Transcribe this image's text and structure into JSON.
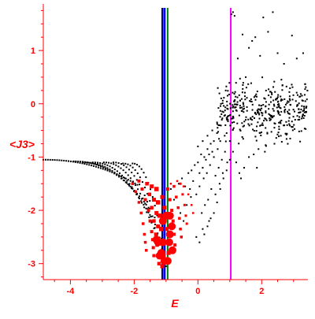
{
  "chart_data": {
    "type": "scatter",
    "title": "",
    "xlabel": "E",
    "ylabel": "<J3>",
    "xlim": [
      -4.85,
      3.45
    ],
    "ylim": [
      -3.3,
      1.8
    ],
    "grid": false,
    "legend": "none",
    "x_ticks": [
      -4,
      -2,
      0,
      2
    ],
    "y_ticks": [
      1,
      0,
      -1,
      -2,
      -3
    ],
    "x_tick_labels": [
      "-4",
      "-2",
      "0",
      "2"
    ],
    "y_tick_labels": [
      "1",
      "0",
      "-1",
      "-2",
      "-3"
    ],
    "colors": {
      "axis": "#ff0000",
      "small_points": "#000000",
      "large_points": "#ff0000",
      "line_blue": "#0000ff",
      "line_darkblue": "#000080",
      "line_green": "#008000",
      "line_magenta": "#ff00ff"
    },
    "vertical_lines": [
      {
        "x": -1.12,
        "color": "#000080"
      },
      {
        "x": -1.05,
        "color": "#0000ff"
      },
      {
        "x": -0.95,
        "color": "#008000"
      },
      {
        "x": 1.03,
        "color": "#ff00ff"
      }
    ],
    "black_branches": [
      {
        "x0": -4.85,
        "y0": -1.05,
        "x1": -1.9,
        "y1": -1.52,
        "n": 42
      },
      {
        "x0": -3.9,
        "y0": -1.08,
        "x1": -1.55,
        "y1": -1.95,
        "n": 34
      },
      {
        "x0": -3.6,
        "y0": -1.1,
        "x1": -1.4,
        "y1": -2.2,
        "n": 30
      },
      {
        "x0": -3.3,
        "y0": -1.1,
        "x1": -1.3,
        "y1": -2.45,
        "n": 27
      },
      {
        "x0": -2.95,
        "y0": -1.1,
        "x1": -1.2,
        "y1": -2.6,
        "n": 24
      },
      {
        "x0": -2.65,
        "y0": -1.1,
        "x1": -1.1,
        "y1": -2.8,
        "n": 20
      },
      {
        "x0": -2.35,
        "y0": -1.12,
        "x1": -1.05,
        "y1": -2.95,
        "n": 18
      },
      {
        "x0": -2.05,
        "y0": -1.12,
        "x1": -1.0,
        "y1": -3.05,
        "n": 16
      }
    ],
    "black_ascent": [
      [
        -0.85,
        -1.6
      ],
      [
        -0.75,
        -1.8
      ],
      [
        -0.6,
        -1.5
      ],
      [
        -0.5,
        -1.4
      ],
      [
        -0.4,
        -1.55
      ],
      [
        -0.3,
        -1.3
      ],
      [
        -0.2,
        -1.25
      ],
      [
        -0.1,
        -1.15
      ],
      [
        0.0,
        -1.1
      ],
      [
        0.1,
        -0.95
      ],
      [
        0.2,
        -1.0
      ],
      [
        0.3,
        -0.85
      ],
      [
        0.4,
        -0.75
      ],
      [
        0.5,
        -0.7
      ],
      [
        0.6,
        -0.55
      ],
      [
        -0.25,
        -1.6
      ],
      [
        -0.15,
        -1.45
      ],
      [
        0.05,
        -1.3
      ],
      [
        0.15,
        -1.2
      ],
      [
        0.25,
        -1.05
      ],
      [
        0.35,
        -0.95
      ],
      [
        0.45,
        -0.9
      ],
      [
        -0.05,
        -1.7
      ],
      [
        0.05,
        -1.55
      ],
      [
        0.18,
        -1.4
      ],
      [
        0.28,
        -1.3
      ],
      [
        0.38,
        -1.15
      ],
      [
        0.5,
        -1.0
      ],
      [
        0.62,
        -0.85
      ],
      [
        0.7,
        -0.7
      ],
      [
        -0.35,
        -1.9
      ],
      [
        -0.22,
        -1.75
      ],
      [
        0.12,
        -2.05
      ],
      [
        0.22,
        -1.9
      ],
      [
        0.32,
        -1.8
      ],
      [
        0.42,
        -1.6
      ],
      [
        0.55,
        -1.35
      ],
      [
        0.65,
        -1.2
      ],
      [
        0.75,
        -1.05
      ],
      [
        0.85,
        -0.9
      ],
      [
        0.3,
        -2.3
      ],
      [
        0.4,
        -2.15
      ],
      [
        0.5,
        -2.05
      ],
      [
        0.6,
        -1.85
      ],
      [
        0.7,
        -1.6
      ],
      [
        0.8,
        -1.4
      ],
      [
        0.9,
        -1.25
      ],
      [
        1.0,
        -1.05
      ],
      [
        0.2,
        -2.45
      ],
      [
        0.15,
        -2.35
      ],
      [
        -0.45,
        -2.2
      ],
      [
        -0.55,
        -2.05
      ],
      [
        0.05,
        -2.6
      ],
      [
        -0.05,
        -2.5
      ],
      [
        0.35,
        -2.2
      ],
      [
        0.0,
        -0.8
      ],
      [
        0.15,
        -0.7
      ],
      [
        0.3,
        -0.6
      ],
      [
        0.45,
        -0.5
      ],
      [
        0.6,
        -0.35
      ],
      [
        0.75,
        -0.3
      ],
      [
        0.9,
        -0.55
      ],
      [
        1.0,
        -0.7
      ],
      [
        1.1,
        -0.9
      ],
      [
        1.2,
        -1.1
      ],
      [
        1.3,
        -1.3
      ],
      [
        1.45,
        -1.2
      ],
      [
        1.6,
        -1.0
      ],
      [
        1.75,
        -0.95
      ],
      [
        1.9,
        -0.85
      ],
      [
        2.1,
        -0.9
      ],
      [
        2.4,
        -0.75
      ],
      [
        2.6,
        -0.6
      ],
      [
        2.8,
        -0.4
      ],
      [
        3.05,
        -0.3
      ],
      [
        3.3,
        -0.2
      ],
      [
        0.55,
        -1.7
      ],
      [
        0.68,
        -1.5
      ],
      [
        0.78,
        -1.3
      ],
      [
        0.92,
        -1.1
      ]
    ],
    "black_scatter_region": {
      "xmin": 0.6,
      "xmax": 3.45,
      "ymin": -0.9,
      "ymax": 0.65,
      "n": 380
    },
    "black_outliers": [
      [
        1.05,
        1.68
      ],
      [
        1.1,
        1.72
      ],
      [
        1.15,
        1.65
      ],
      [
        2.35,
        1.72
      ],
      [
        1.4,
        1.3
      ],
      [
        1.8,
        1.25
      ],
      [
        2.2,
        1.35
      ],
      [
        1.6,
        1.05
      ],
      [
        2.95,
        1.28
      ],
      [
        3.3,
        0.95
      ],
      [
        2.5,
        0.95
      ],
      [
        1.95,
        0.9
      ],
      [
        1.25,
        0.85
      ],
      [
        3.1,
        0.85
      ],
      [
        2.05,
        1.62
      ],
      [
        1.7,
        1.18
      ],
      [
        1.5,
        0.5
      ],
      [
        1.35,
        -1.4
      ],
      [
        1.85,
        -1.2
      ],
      [
        2.7,
        0.75
      ]
    ],
    "red_branches": [
      {
        "points": [
          [
            -2.05,
            -1.5
          ],
          [
            -1.95,
            -1.65
          ],
          [
            -1.85,
            -1.85
          ],
          [
            -1.78,
            -2.05
          ],
          [
            -1.72,
            -2.25
          ],
          [
            -1.68,
            -2.45
          ],
          [
            -1.65,
            -2.6
          ],
          [
            -1.62,
            -2.75
          ]
        ],
        "size": 3.5
      },
      {
        "points": [
          [
            -1.85,
            -1.45
          ],
          [
            -1.75,
            -1.6
          ],
          [
            -1.65,
            -1.8
          ],
          [
            -1.55,
            -2.0
          ],
          [
            -1.5,
            -2.2
          ],
          [
            -1.45,
            -2.4
          ],
          [
            -1.42,
            -2.55
          ],
          [
            -1.4,
            -2.7
          ],
          [
            -1.38,
            -2.85
          ]
        ],
        "size": 4
      },
      {
        "points": [
          [
            -1.6,
            -1.5
          ],
          [
            -1.52,
            -1.7
          ],
          [
            -1.45,
            -1.95
          ],
          [
            -1.38,
            -2.2
          ],
          [
            -1.32,
            -2.45
          ],
          [
            -1.28,
            -2.65
          ],
          [
            -1.25,
            -2.85
          ],
          [
            -1.22,
            -3.0
          ]
        ],
        "size": 4.5
      },
      {
        "points": [
          [
            -1.45,
            -1.55
          ],
          [
            -1.38,
            -1.8
          ],
          [
            -1.3,
            -2.05
          ],
          [
            -1.25,
            -2.3
          ],
          [
            -1.18,
            -2.6
          ],
          [
            -1.15,
            -2.85
          ],
          [
            -1.12,
            -3.05
          ]
        ],
        "size": 5
      },
      {
        "points": [
          [
            -1.3,
            -1.6
          ],
          [
            -1.25,
            -1.85
          ],
          [
            -1.2,
            -2.1
          ],
          [
            -1.15,
            -2.35
          ],
          [
            -1.1,
            -2.6
          ],
          [
            -1.08,
            -2.85
          ]
        ],
        "size": 5.5
      },
      {
        "points": [
          [
            -1.12,
            -1.75
          ],
          [
            -1.05,
            -1.95
          ],
          [
            -1.0,
            -2.1
          ],
          [
            -0.98,
            -2.35
          ],
          [
            -0.95,
            -2.6
          ],
          [
            -0.92,
            -2.8
          ]
        ],
        "size": 5
      },
      {
        "points": [
          [
            -0.95,
            -1.6
          ],
          [
            -0.88,
            -1.8
          ],
          [
            -0.82,
            -2.0
          ],
          [
            -0.78,
            -2.2
          ],
          [
            -0.75,
            -2.45
          ],
          [
            -0.72,
            -2.65
          ]
        ],
        "size": 4
      },
      {
        "points": [
          [
            -0.75,
            -1.55
          ],
          [
            -0.68,
            -1.75
          ],
          [
            -0.62,
            -1.95
          ],
          [
            -0.58,
            -2.15
          ],
          [
            -0.55,
            -2.35
          ],
          [
            -0.52,
            -2.5
          ]
        ],
        "size": 3.5
      },
      {
        "points": [
          [
            -0.55,
            -1.5
          ],
          [
            -0.48,
            -1.7
          ],
          [
            -0.42,
            -1.9
          ],
          [
            -0.38,
            -2.1
          ],
          [
            -0.35,
            -2.25
          ]
        ],
        "size": 3
      },
      {
        "points": [
          [
            -0.85,
            -1.5
          ],
          [
            -0.65,
            -1.45
          ],
          [
            -0.45,
            -1.55
          ],
          [
            -0.3,
            -1.7
          ],
          [
            -0.2,
            -1.9
          ],
          [
            -0.15,
            -2.05
          ]
        ],
        "size": 2.5
      }
    ],
    "red_big": [
      [
        -1.0,
        -2.1
      ],
      [
        -0.88,
        -2.1
      ],
      [
        -0.9,
        -2.6
      ],
      [
        -0.95,
        -2.95
      ],
      [
        -1.05,
        -2.95
      ],
      [
        -1.1,
        -2.6
      ],
      [
        -1.25,
        -2.6
      ],
      [
        -1.15,
        -2.8
      ],
      [
        -1.2,
        -2.85
      ],
      [
        -1.3,
        -2.55
      ],
      [
        -1.1,
        -2.2
      ],
      [
        -0.82,
        -2.3
      ],
      [
        -0.88,
        -2.45
      ],
      [
        -0.8,
        -2.75
      ]
    ]
  }
}
